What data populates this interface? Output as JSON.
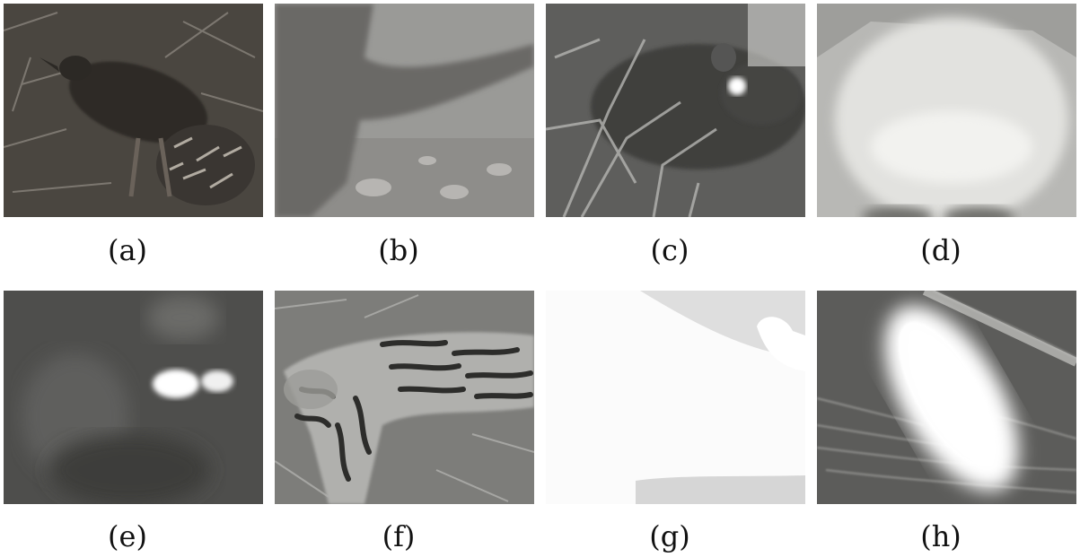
{
  "figure": {
    "panels": [
      {
        "label": "(a)",
        "subject": "bird on leaf litter",
        "tone": "color-dim"
      },
      {
        "label": "(b)",
        "subject": "blurred animal tail",
        "tone": "grayscale-night"
      },
      {
        "label": "(c)",
        "subject": "small mammal with eyeshine",
        "tone": "grayscale-night"
      },
      {
        "label": "(d)",
        "subject": "overexposed close-up of fur",
        "tone": "grayscale-overexposed"
      },
      {
        "label": "(e)",
        "subject": "dark frame with eyeshine",
        "tone": "grayscale-night"
      },
      {
        "label": "(f)",
        "subject": "spotted cat",
        "tone": "grayscale-night"
      },
      {
        "label": "(g)",
        "subject": "washed-out frame",
        "tone": "grayscale-overexposed"
      },
      {
        "label": "(h)",
        "subject": "bright blurred animal",
        "tone": "grayscale-overexposed"
      }
    ]
  }
}
